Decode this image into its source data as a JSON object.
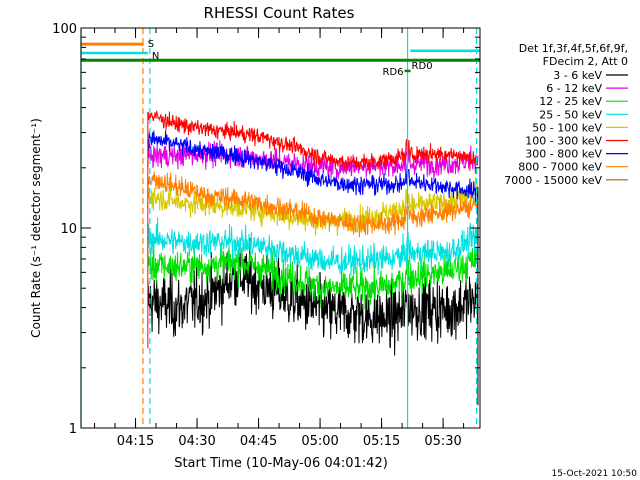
{
  "chart_data": {
    "type": "line",
    "title": "RHESSI Count Rates",
    "xlabel": "Start Time (10-May-06 04:01:42)",
    "ylabel": "Count Rate (s⁻¹ detector segment⁻¹)",
    "yscale": "log",
    "ylim": [
      1,
      100
    ],
    "xlim": [
      "04:01:42",
      "05:39:00"
    ],
    "x_ticks": [
      "04:15",
      "04:30",
      "04:45",
      "05:00",
      "05:15",
      "05:30"
    ],
    "y_ticks": [
      "1",
      "10",
      "100"
    ],
    "grid": false,
    "legend_position": "right",
    "legend_header": [
      "Det 1f,3f,4f,5f,6f,9f,",
      "FDecim 2, Att 0"
    ],
    "data_start": "04:18:00",
    "data_end": "05:38:30",
    "series": [
      {
        "name": "3 - 6 keV",
        "color": "#000000",
        "values": [
          4.3,
          4.0,
          4.5,
          5.8,
          5.0,
          4.3,
          3.8,
          3.7,
          3.5,
          4.0,
          3.9,
          4.4
        ]
      },
      {
        "name": "6 - 12 keV",
        "color": "#e400e4",
        "values": [
          23,
          23,
          23.5,
          23,
          22,
          21,
          20,
          20.5,
          20.5,
          21,
          21,
          22
        ]
      },
      {
        "name": "12 - 25 keV",
        "color": "#00e000",
        "values": [
          6.5,
          6.4,
          6.5,
          6.8,
          6.2,
          5.5,
          5.0,
          5.0,
          5.1,
          5.8,
          6.0,
          7.0
        ]
      },
      {
        "name": "25 - 50 keV",
        "color": "#00e0e0",
        "values": [
          9.0,
          8.5,
          8.5,
          8.5,
          8.0,
          7.3,
          6.8,
          6.8,
          7.0,
          7.5,
          7.5,
          9.0
        ]
      },
      {
        "name": "50 - 100 keV",
        "color": "#d8c800",
        "values": [
          14.5,
          13.5,
          13.0,
          12.8,
          12.0,
          11.2,
          10.8,
          11.0,
          12.0,
          13.0,
          13.5,
          15.0
        ]
      },
      {
        "name": "100 - 300 keV",
        "color": "#ff0000",
        "values": [
          37,
          33,
          31,
          30,
          28,
          25,
          22,
          21,
          22,
          23.5,
          23.5,
          22
        ]
      },
      {
        "name": "300 - 800 keV",
        "color": "#0000ff",
        "values": [
          28,
          26,
          24,
          23,
          21,
          19,
          17,
          16.5,
          16.5,
          17,
          16,
          15
        ]
      },
      {
        "name": "800 - 7000 keV",
        "color": "#ff8000",
        "values": [
          18,
          16,
          14.5,
          14,
          13,
          12,
          11,
          10.5,
          10.5,
          11.5,
          12,
          13
        ]
      },
      {
        "name": "7000 - 15000 keV",
        "color": "#a86400",
        "values": []
      }
    ],
    "flags": [
      {
        "name": "S",
        "color": "#ff8000",
        "y": 83,
        "start": "04:01:42",
        "end": "04:17:00"
      },
      {
        "name": "N",
        "color": "#00e0e0",
        "y": 75,
        "start": "04:01:42",
        "end": "04:18:00",
        "end2_start": "05:22:00",
        "end2_end": "05:39:00",
        "y2": 77
      },
      {
        "name": "RD6",
        "color": "#008800",
        "y": 69,
        "start": "04:01:42",
        "end": "05:39:00"
      },
      {
        "name": "RD0",
        "color": "#008800",
        "y": 61
      },
      {
        "name": "RD6",
        "color": "#008800",
        "y": 61
      }
    ],
    "vertical_markers": [
      {
        "time": "04:01:42",
        "color": "#00e0e0",
        "style": "solid"
      },
      {
        "time": "04:16:48",
        "color": "#ff8000",
        "style": "dashed"
      },
      {
        "time": "04:18:30",
        "color": "#00e0e0",
        "style": "dashed"
      },
      {
        "time": "05:21:20",
        "color": "#00e0e0",
        "style": "solid"
      },
      {
        "time": "05:38:10",
        "color": "#00e0e0",
        "style": "dashed"
      }
    ],
    "timestamp": "15-Oct-2021 10:50"
  }
}
